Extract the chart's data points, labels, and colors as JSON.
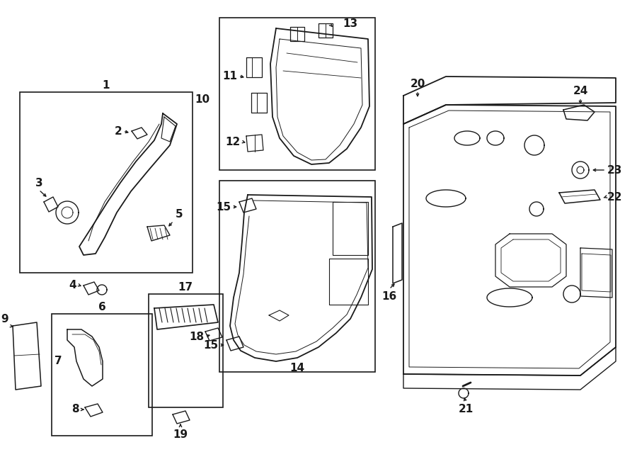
{
  "background_color": "#ffffff",
  "line_color": "#1a1a1a",
  "fig_width": 9.0,
  "fig_height": 6.62,
  "dpi": 100,
  "font_size": 11
}
